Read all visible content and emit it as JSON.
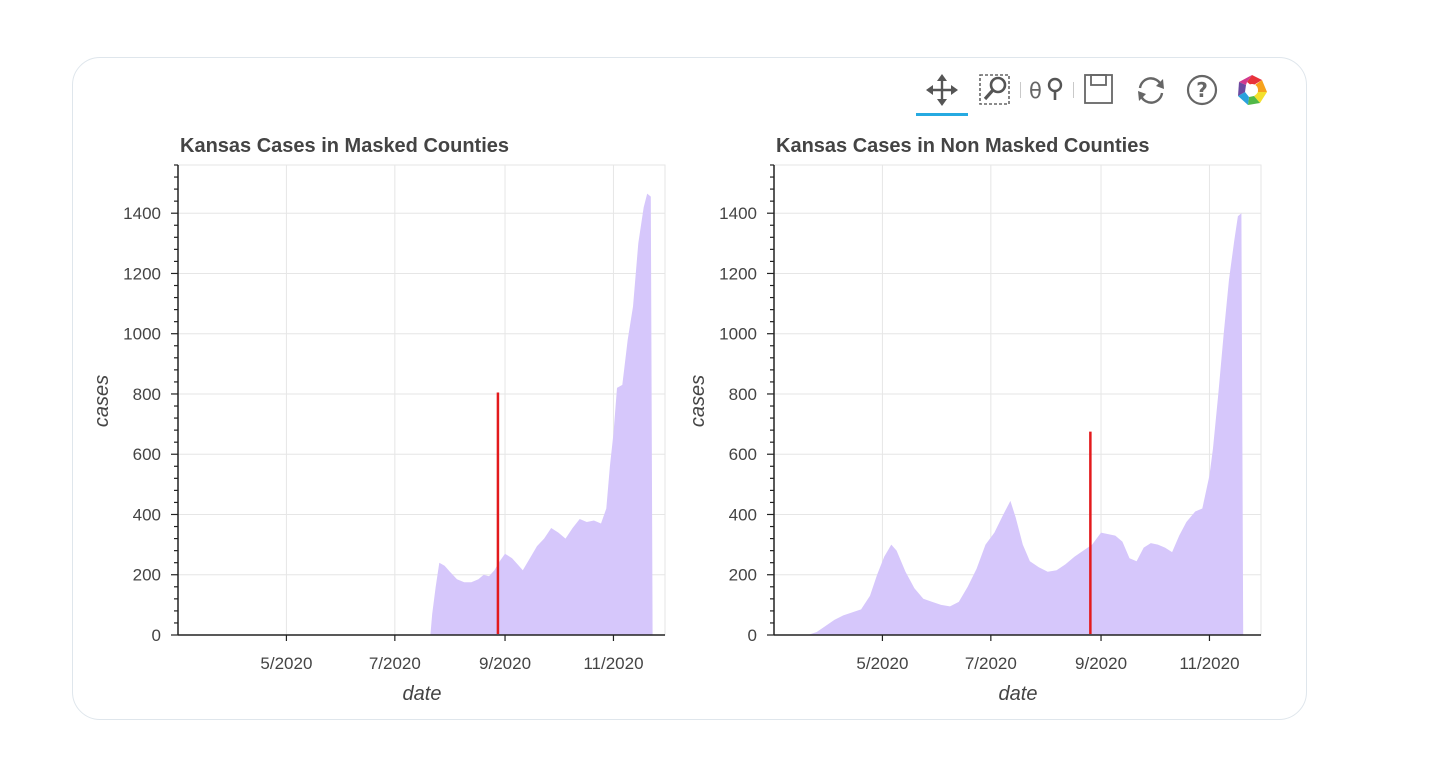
{
  "toolbar": {
    "tools": [
      "pan-tool",
      "box-zoom-tool",
      "wheel-zoom-tool",
      "save-tool",
      "reset-tool",
      "help-tool",
      "bokeh-logo"
    ],
    "active_tool": "pan-tool",
    "accent_color": "#26aae1"
  },
  "chart_data": [
    {
      "type": "area",
      "title": "Kansas Cases in Masked Counties",
      "xlabel": "date",
      "ylabel": "cases",
      "xlim": [
        "2020-03-01",
        "2020-11-30"
      ],
      "ylim": [
        0,
        1560
      ],
      "yticks": [
        0,
        200,
        400,
        600,
        800,
        1000,
        1200,
        1400
      ],
      "ytick_labels": [
        "0",
        "200",
        "400",
        "600",
        "800",
        "1000",
        "1200",
        "1400"
      ],
      "xticks": [
        "2020-05-01",
        "2020-07-01",
        "2020-09-01",
        "2020-11-01"
      ],
      "xtick_labels": [
        "5/2020",
        "7/2020",
        "9/2020",
        "11/2020"
      ],
      "fill_color": "#d6c7fb",
      "marker_line": {
        "date": "2020-08-28",
        "top": 805,
        "color": "#e31a1c"
      },
      "series": [
        {
          "name": "cases",
          "points": [
            [
              "2020-07-21",
              0
            ],
            [
              "2020-07-22",
              70
            ],
            [
              "2020-07-24",
              160
            ],
            [
              "2020-07-26",
              240
            ],
            [
              "2020-07-29",
              230
            ],
            [
              "2020-08-01",
              210
            ],
            [
              "2020-08-05",
              185
            ],
            [
              "2020-08-09",
              175
            ],
            [
              "2020-08-13",
              175
            ],
            [
              "2020-08-17",
              185
            ],
            [
              "2020-08-20",
              200
            ],
            [
              "2020-08-23",
              195
            ],
            [
              "2020-08-26",
              215
            ],
            [
              "2020-08-29",
              245
            ],
            [
              "2020-09-01",
              270
            ],
            [
              "2020-09-05",
              255
            ],
            [
              "2020-09-08",
              235
            ],
            [
              "2020-09-11",
              215
            ],
            [
              "2020-09-15",
              255
            ],
            [
              "2020-09-19",
              295
            ],
            [
              "2020-09-23",
              320
            ],
            [
              "2020-09-27",
              355
            ],
            [
              "2020-10-01",
              340
            ],
            [
              "2020-10-05",
              320
            ],
            [
              "2020-10-09",
              355
            ],
            [
              "2020-10-13",
              385
            ],
            [
              "2020-10-17",
              375
            ],
            [
              "2020-10-21",
              380
            ],
            [
              "2020-10-25",
              370
            ],
            [
              "2020-10-28",
              420
            ],
            [
              "2020-10-30",
              560
            ],
            [
              "2020-11-01",
              670
            ],
            [
              "2020-11-03",
              820
            ],
            [
              "2020-11-06",
              830
            ],
            [
              "2020-11-09",
              980
            ],
            [
              "2020-11-12",
              1090
            ],
            [
              "2020-11-15",
              1300
            ],
            [
              "2020-11-18",
              1420
            ],
            [
              "2020-11-20",
              1465
            ],
            [
              "2020-11-22",
              1455
            ],
            [
              "2020-11-23",
              0
            ]
          ]
        }
      ]
    },
    {
      "type": "area",
      "title": "Kansas Cases in Non Masked Counties",
      "xlabel": "date",
      "ylabel": "cases",
      "xlim": [
        "2020-03-01",
        "2020-11-30"
      ],
      "ylim": [
        0,
        1560
      ],
      "yticks": [
        0,
        200,
        400,
        600,
        800,
        1000,
        1200,
        1400
      ],
      "ytick_labels": [
        "0",
        "200",
        "400",
        "600",
        "800",
        "1000",
        "1200",
        "1400"
      ],
      "xticks": [
        "2020-05-01",
        "2020-07-01",
        "2020-09-01",
        "2020-11-01"
      ],
      "xtick_labels": [
        "5/2020",
        "7/2020",
        "9/2020",
        "11/2020"
      ],
      "fill_color": "#d6c7fb",
      "marker_line": {
        "date": "2020-08-26",
        "top": 675,
        "color": "#e31a1c"
      },
      "series": [
        {
          "name": "cases",
          "points": [
            [
              "2020-03-20",
              0
            ],
            [
              "2020-03-25",
              10
            ],
            [
              "2020-03-30",
              30
            ],
            [
              "2020-04-04",
              50
            ],
            [
              "2020-04-09",
              65
            ],
            [
              "2020-04-14",
              75
            ],
            [
              "2020-04-19",
              85
            ],
            [
              "2020-04-24",
              130
            ],
            [
              "2020-04-28",
              200
            ],
            [
              "2020-05-02",
              260
            ],
            [
              "2020-05-06",
              300
            ],
            [
              "2020-05-09",
              280
            ],
            [
              "2020-05-14",
              210
            ],
            [
              "2020-05-19",
              155
            ],
            [
              "2020-05-24",
              120
            ],
            [
              "2020-05-29",
              110
            ],
            [
              "2020-06-03",
              100
            ],
            [
              "2020-06-08",
              95
            ],
            [
              "2020-06-13",
              110
            ],
            [
              "2020-06-18",
              160
            ],
            [
              "2020-06-23",
              220
            ],
            [
              "2020-06-28",
              300
            ],
            [
              "2020-07-03",
              340
            ],
            [
              "2020-07-08",
              400
            ],
            [
              "2020-07-12",
              445
            ],
            [
              "2020-07-15",
              390
            ],
            [
              "2020-07-19",
              300
            ],
            [
              "2020-07-23",
              245
            ],
            [
              "2020-07-28",
              225
            ],
            [
              "2020-08-02",
              210
            ],
            [
              "2020-08-07",
              215
            ],
            [
              "2020-08-12",
              235
            ],
            [
              "2020-08-17",
              260
            ],
            [
              "2020-08-22",
              280
            ],
            [
              "2020-08-27",
              300
            ],
            [
              "2020-09-01",
              340
            ],
            [
              "2020-09-05",
              335
            ],
            [
              "2020-09-09",
              330
            ],
            [
              "2020-09-13",
              310
            ],
            [
              "2020-09-17",
              255
            ],
            [
              "2020-09-21",
              245
            ],
            [
              "2020-09-25",
              290
            ],
            [
              "2020-09-29",
              305
            ],
            [
              "2020-10-03",
              300
            ],
            [
              "2020-10-07",
              290
            ],
            [
              "2020-10-11",
              275
            ],
            [
              "2020-10-15",
              330
            ],
            [
              "2020-10-19",
              375
            ],
            [
              "2020-10-24",
              410
            ],
            [
              "2020-10-28",
              420
            ],
            [
              "2020-11-01",
              530
            ],
            [
              "2020-11-03",
              620
            ],
            [
              "2020-11-06",
              800
            ],
            [
              "2020-11-09",
              1000
            ],
            [
              "2020-11-12",
              1180
            ],
            [
              "2020-11-15",
              1310
            ],
            [
              "2020-11-17",
              1390
            ],
            [
              "2020-11-19",
              1400
            ],
            [
              "2020-11-20",
              0
            ]
          ]
        }
      ]
    }
  ]
}
